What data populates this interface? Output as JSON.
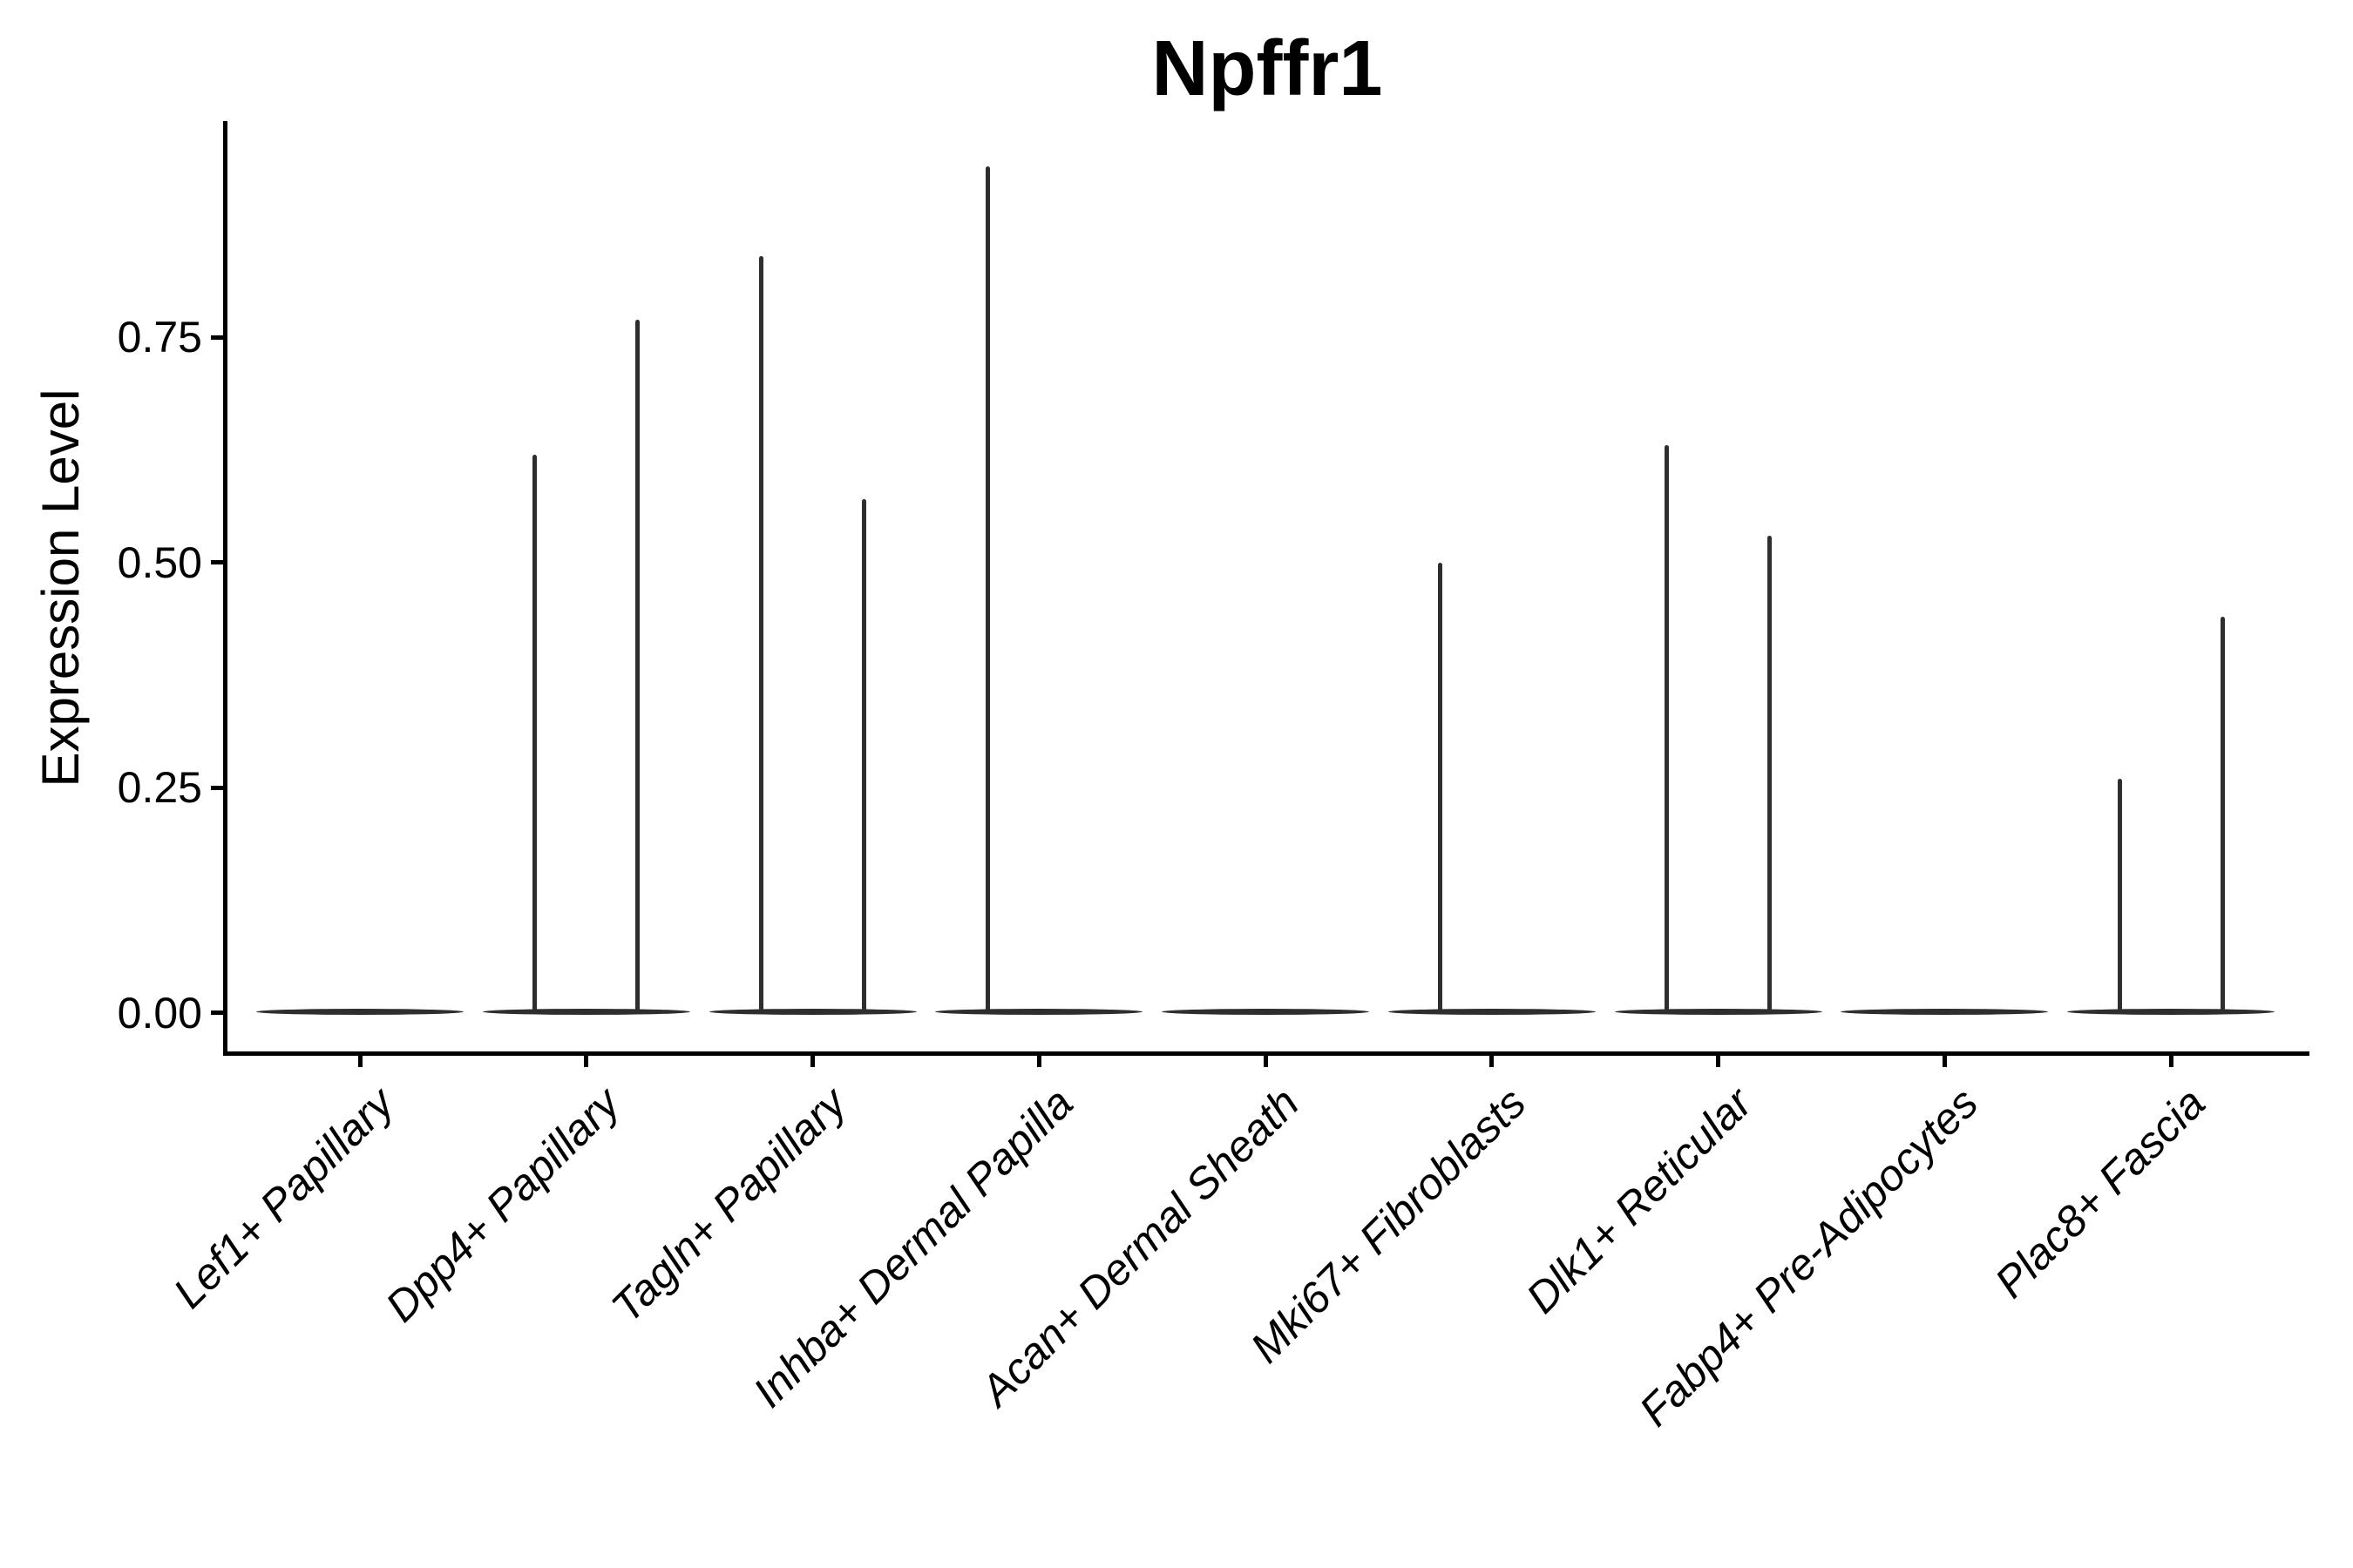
{
  "figure": {
    "title": "Npffr1"
  },
  "chart_data": {
    "type": "violin",
    "title": "Npffr1",
    "xlabel": "",
    "ylabel": "Expression Level",
    "ylim": [
      -0.05,
      0.99
    ],
    "yticks": [
      0.0,
      0.25,
      0.5,
      0.75
    ],
    "ytick_labels": [
      "0.00",
      "0.25",
      "0.50",
      "0.75"
    ],
    "categories": [
      "Lef1+ Papillary",
      "Dpp4+ Papillary",
      "Tagln+ Papillary",
      "Inhba+ Dermal Papilla",
      "Acan+ Dermal Sheath",
      "Mki67+ Fibroblasts",
      "Dlk1+ Reticular",
      "Fabp4+ Pre-Adipocytes",
      "Plac8+ Fascia"
    ],
    "violins_per_category": 2,
    "series": [
      {
        "name": "left-violin-max-expression",
        "values": [
          0,
          0.62,
          0.84,
          0.94,
          0,
          0.5,
          0.63,
          0,
          0.26
        ]
      },
      {
        "name": "right-violin-max-expression",
        "values": [
          0,
          0.77,
          0.57,
          0,
          0,
          0,
          0.53,
          0,
          0.44
        ]
      }
    ],
    "violin_shape": "flat-wide-at-zero-with-thin-central-spike-to-max",
    "baseline_value": 0,
    "grid": false,
    "legend": "none",
    "x_tick_label_rotation_deg": 45,
    "x_tick_label_style": "italic",
    "colors": {
      "violin": "#2e2e2e",
      "axis": "#000000",
      "text": "#000000",
      "background": "#ffffff"
    }
  }
}
